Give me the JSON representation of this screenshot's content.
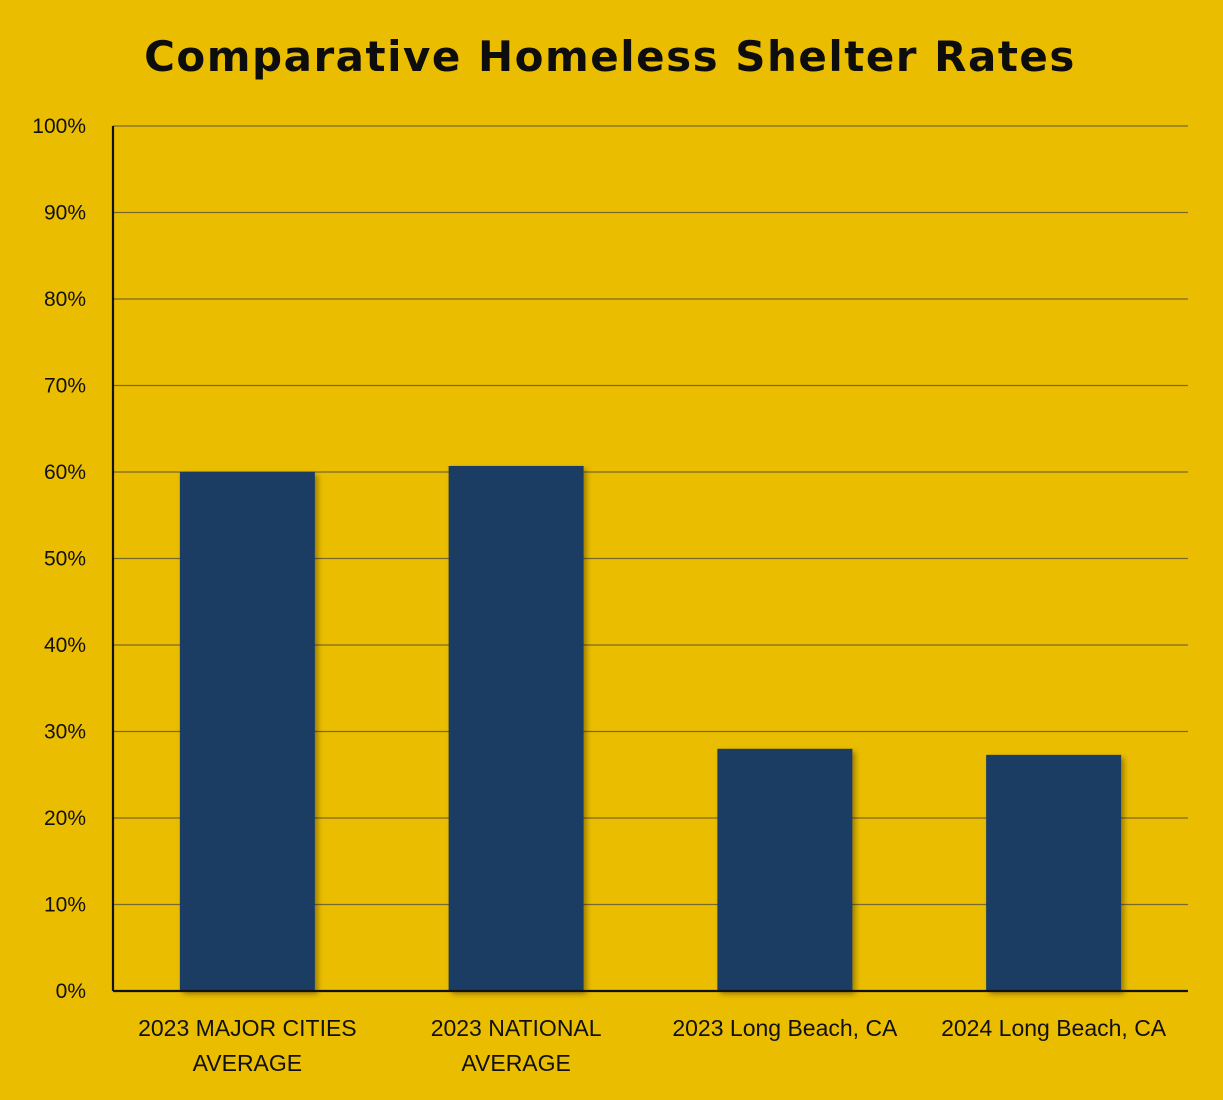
{
  "chart_data": {
    "type": "bar",
    "title": "Comparative Homeless Shelter Rates",
    "categories": [
      [
        "2023 MAJOR CITIES",
        "AVERAGE"
      ],
      [
        "2023 NATIONAL",
        "AVERAGE"
      ],
      [
        "2023 Long Beach, CA"
      ],
      [
        "2024 Long Beach, CA"
      ]
    ],
    "values": [
      60,
      60.7,
      28,
      27.3
    ],
    "ylim": [
      0,
      100
    ],
    "yticks": [
      0,
      10,
      20,
      30,
      40,
      50,
      60,
      70,
      80,
      90,
      100
    ],
    "ytick_labels": [
      "0%",
      "10%",
      "20%",
      "30%",
      "40%",
      "50%",
      "60%",
      "70%",
      "80%",
      "90%",
      "100%"
    ],
    "xlabel": "",
    "ylabel": "",
    "grid": true,
    "legend": false,
    "colors": {
      "background": "#ebbd00",
      "bar": "#1a3c63",
      "gridline": "#7a6a2a",
      "axis": "#111111"
    }
  }
}
